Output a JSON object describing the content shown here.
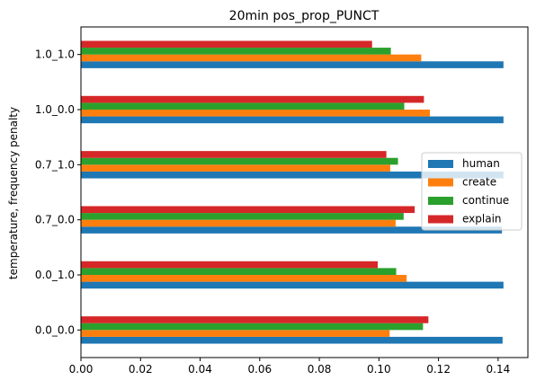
{
  "chart_data": {
    "type": "bar",
    "orientation": "horizontal",
    "title": "20min pos_prop_PUNCT",
    "xlabel": "",
    "ylabel": "temperature, frequency penalty",
    "categories": [
      "0.0_0.0",
      "0.0_1.0",
      "0.7_0.0",
      "0.7_1.0",
      "1.0_0.0",
      "1.0_1.0"
    ],
    "xlim": [
      0,
      0.15
    ],
    "xticks": [
      "0.00",
      "0.02",
      "0.04",
      "0.06",
      "0.08",
      "0.10",
      "0.12",
      "0.14"
    ],
    "grid": false,
    "legend_position": "center-right",
    "series": [
      {
        "name": "human",
        "color": "#1f77b4",
        "values": [
          0.1415,
          0.1418,
          0.1413,
          0.1418,
          0.1418,
          0.1418
        ]
      },
      {
        "name": "create",
        "color": "#ff7f0e",
        "values": [
          0.1036,
          0.1093,
          0.1056,
          0.1038,
          0.1171,
          0.1142
        ]
      },
      {
        "name": "continue",
        "color": "#2ca02c",
        "values": [
          0.1148,
          0.1058,
          0.1083,
          0.1064,
          0.1085,
          0.104
        ]
      },
      {
        "name": "explain",
        "color": "#d62728",
        "values": [
          0.1166,
          0.0996,
          0.112,
          0.1025,
          0.1151,
          0.0977
        ]
      }
    ]
  }
}
